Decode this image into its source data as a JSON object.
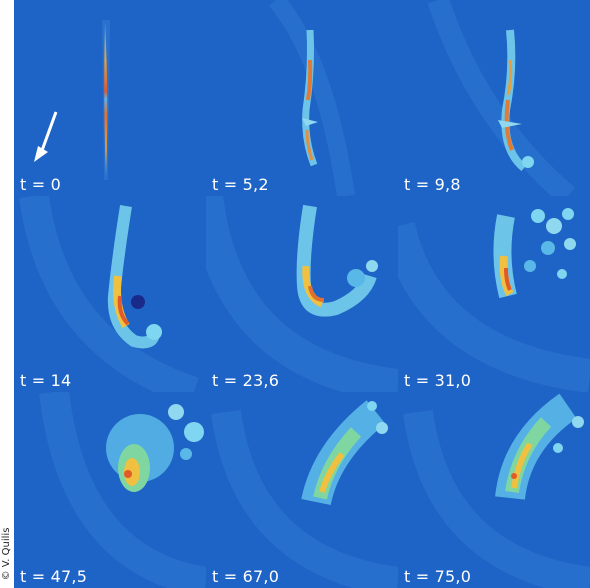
{
  "credit": "© V. Quilis",
  "panels": [
    {
      "label": "t = 0"
    },
    {
      "label": "t = 5,2"
    },
    {
      "label": "t = 9,8"
    },
    {
      "label": "t = 14"
    },
    {
      "label": "t = 23,6"
    },
    {
      "label": "t = 31,0"
    },
    {
      "label": "t = 47,5"
    },
    {
      "label": "t = 67,0"
    },
    {
      "label": "t = 75,0"
    }
  ],
  "colors": {
    "background": "#1e63c6",
    "shell": "#3a86d8",
    "cloud_outer": "#48c8e8",
    "cloud_mid": "#7fd6a0",
    "cloud_hot": "#f0c040",
    "core": "#e05a2a",
    "label": "#ffffff"
  }
}
